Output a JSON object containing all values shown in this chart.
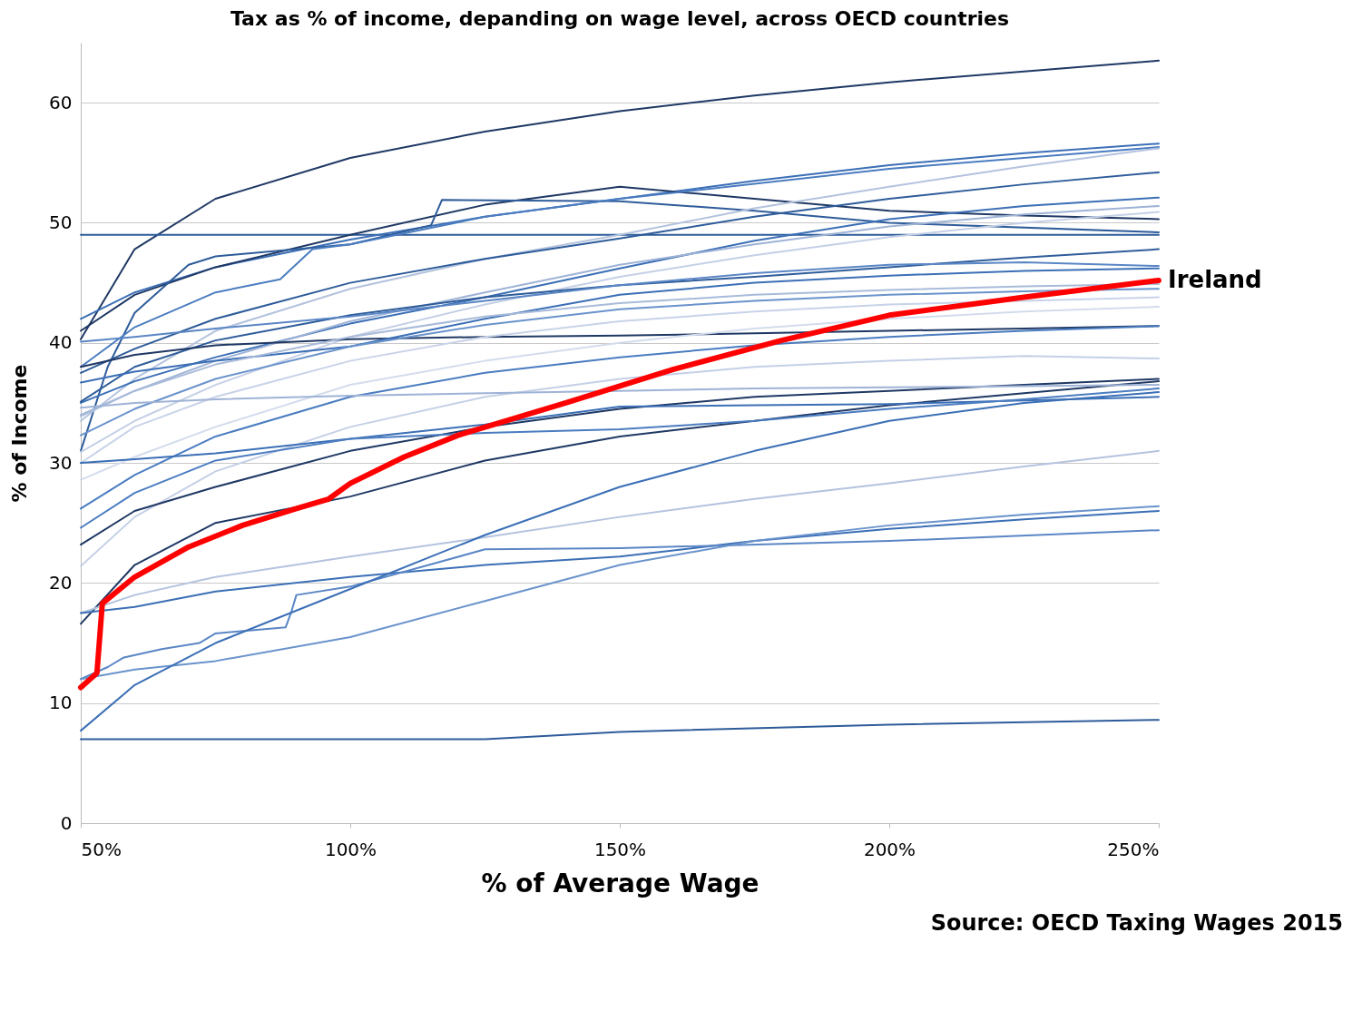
{
  "chart_data": {
    "type": "line",
    "title": "Tax as % of income, depanding on wage level, across OECD countries",
    "xlabel": "% of Average Wage",
    "ylabel": "% of Income",
    "annotations": [
      "Source: OECD Taxing Wages 2015"
    ],
    "x": [
      50,
      60,
      75,
      100,
      125,
      150,
      175,
      200,
      225,
      250
    ],
    "xlim": [
      50,
      250
    ],
    "xticks": [
      {
        "value": 50,
        "label": "50%"
      },
      {
        "value": 100,
        "label": "100%"
      },
      {
        "value": 150,
        "label": "150%"
      },
      {
        "value": 200,
        "label": "200%"
      },
      {
        "value": 250,
        "label": "250%"
      }
    ],
    "ylim": [
      0,
      65
    ],
    "yticks": [
      0,
      10,
      20,
      30,
      40,
      50,
      60
    ],
    "grid": "y",
    "marker": "none",
    "line_style": "solid",
    "series": [
      {
        "color": "#1f3864",
        "values": [
          40.3,
          47.8,
          52,
          55.4,
          57.6,
          59.3,
          60.6,
          61.7,
          62.6,
          63.5
        ]
      },
      {
        "color": "#2e5c9a",
        "values": [
          49,
          49,
          49,
          49,
          49,
          49,
          49,
          49,
          49,
          49
        ]
      },
      {
        "color": "#3b6fb6",
        "values": [
          42,
          44.2,
          46.3,
          48.6,
          50.5,
          52,
          53.5,
          54.8,
          55.8,
          56.6
        ]
      },
      {
        "color": "#1f3864",
        "values": [
          41,
          44,
          46.3,
          49,
          51.5,
          53,
          52,
          51,
          50.6,
          50.3
        ]
      },
      {
        "color": "#2e5c9a",
        "x": [
          50,
          55,
          60,
          70,
          75,
          100,
          115,
          117,
          150,
          175,
          200,
          250
        ],
        "values": [
          31,
          38,
          42.5,
          46.5,
          47.2,
          48.2,
          49.8,
          51.9,
          51.8,
          51,
          50,
          49.2
        ]
      },
      {
        "color": "#4a7cc0",
        "x": [
          50,
          60,
          75,
          87,
          93,
          100,
          125,
          150,
          200,
          250
        ],
        "values": [
          38,
          41.3,
          44.2,
          45.3,
          47.8,
          48.2,
          50.5,
          52,
          54.5,
          56.3
        ]
      },
      {
        "color": "#b4c3de",
        "values": [
          33.5,
          37,
          41,
          44.5,
          47,
          49,
          51.2,
          53,
          54.7,
          56.2
        ]
      },
      {
        "color": "#2e5c9a",
        "values": [
          37.5,
          39.5,
          42,
          45,
          47,
          48.7,
          50.5,
          52,
          53.2,
          54.2
        ]
      },
      {
        "color": "#3b6fb6",
        "values": [
          35,
          36.8,
          38.8,
          41.6,
          43.8,
          46.2,
          48.5,
          50.3,
          51.4,
          52.1
        ]
      },
      {
        "color": "#9fb3d6",
        "values": [
          34,
          36,
          38.5,
          41.8,
          44.2,
          46.5,
          48.2,
          49.7,
          50.7,
          51.4
        ]
      },
      {
        "color": "#c5d0e6",
        "values": [
          30.9,
          33.5,
          36.5,
          40.5,
          43.2,
          45.5,
          47.3,
          48.8,
          50,
          50.9
        ]
      },
      {
        "color": "#2e5c9a",
        "values": [
          35.1,
          38,
          40.2,
          42.3,
          43.8,
          44.8,
          45.5,
          46.3,
          47.1,
          47.8
        ]
      },
      {
        "color": "#5a86c5",
        "values": [
          40.1,
          40.5,
          41.2,
          42.2,
          43.5,
          44.8,
          45.8,
          46.5,
          46.7,
          46.4
        ]
      },
      {
        "color": "#1f3864",
        "values": [
          38,
          39,
          39.8,
          40.3,
          40.5,
          40.6,
          40.8,
          41,
          41.2,
          41.4
        ]
      },
      {
        "color": "#3b6fb6",
        "values": [
          36.7,
          37.6,
          38.5,
          39.7,
          42,
          44,
          45,
          45.6,
          46,
          46.2
        ]
      },
      {
        "color": "#a9bbda",
        "values": [
          33.9,
          36,
          38.2,
          40.5,
          42.2,
          43.3,
          44,
          44.4,
          44.7,
          44.9
        ]
      },
      {
        "color": "#6a93cc",
        "values": [
          32.3,
          34.5,
          37,
          39.7,
          41.5,
          42.8,
          43.5,
          44,
          44.3,
          44.5
        ]
      },
      {
        "color": "#c9d3e8",
        "values": [
          30,
          33,
          35.5,
          38.5,
          40.5,
          41.8,
          42.6,
          43.2,
          43.5,
          43.8
        ]
      },
      {
        "color": "#d3dced",
        "values": [
          28.6,
          30.5,
          33,
          36.5,
          38.5,
          40,
          41.2,
          42,
          42.6,
          43
        ]
      },
      {
        "color": "#4a7cc0",
        "values": [
          26.2,
          29,
          32.2,
          35.5,
          37.5,
          38.8,
          39.8,
          40.5,
          41,
          41.4
        ]
      },
      {
        "color": "#c5d0e6",
        "values": [
          21.4,
          25.5,
          29.3,
          33,
          35.5,
          37,
          38,
          38.5,
          38.9,
          38.7
        ]
      },
      {
        "color": "#1f3864",
        "values": [
          23.2,
          26,
          28,
          31,
          33,
          34.5,
          35.5,
          36,
          36.5,
          37
        ]
      },
      {
        "color": "#1f3864",
        "values": [
          16.6,
          21.5,
          25,
          27.2,
          30.2,
          32.2,
          33.5,
          34.8,
          35.8,
          36.8
        ]
      },
      {
        "color": "#3b6fb6",
        "values": [
          30,
          30.3,
          30.8,
          32,
          33.2,
          34.7,
          34.8,
          34.9,
          35.2,
          35.5
        ]
      },
      {
        "color": "#4a7cc0",
        "values": [
          24.6,
          27.5,
          30.2,
          32,
          32.5,
          32.8,
          33.5,
          34.5,
          35.3,
          36.2
        ]
      },
      {
        "color": "#9fb3d6",
        "values": [
          34.6,
          35,
          35.3,
          35.6,
          35.8,
          36,
          36.2,
          36.3,
          36.4,
          36.5
        ]
      },
      {
        "color": "#b4c3de",
        "values": [
          17.5,
          19,
          20.5,
          22.2,
          23.8,
          25.5,
          27,
          28.3,
          29.7,
          31
        ]
      },
      {
        "color": "#3b6fb6",
        "values": [
          17.5,
          18,
          19.3,
          20.5,
          21.5,
          22.2,
          23.5,
          24.5,
          25.3,
          26
        ]
      },
      {
        "color": "#5a86c5",
        "x": [
          50,
          55,
          58,
          65,
          72,
          75,
          88,
          89,
          90,
          100,
          125,
          150,
          200,
          250
        ],
        "values": [
          12,
          13,
          13.8,
          14.5,
          15,
          15.8,
          16.3,
          17.5,
          19,
          19.7,
          22.8,
          22.9,
          23.5,
          24.4
        ]
      },
      {
        "color": "#6a93cc",
        "values": [
          12,
          12.8,
          13.5,
          15.5,
          18.5,
          21.5,
          23.5,
          24.8,
          25.7,
          26.4
        ]
      },
      {
        "color": "#3b6fb6",
        "values": [
          7.7,
          11.5,
          15,
          19.5,
          24,
          28,
          31,
          33.5,
          35,
          35.9
        ]
      },
      {
        "color": "#2e5c9a",
        "x": [
          50,
          100,
          125,
          150,
          200,
          250
        ],
        "values": [
          7,
          7,
          7,
          7.6,
          8.2,
          8.6
        ]
      },
      {
        "name": "Ireland",
        "color": "#ff0000",
        "x": [
          50,
          53,
          54,
          60,
          70,
          80,
          90,
          96,
          100,
          110,
          120,
          140,
          160,
          180,
          200,
          225,
          250
        ],
        "values": [
          11.3,
          12.5,
          18.3,
          20.5,
          23,
          24.8,
          26.2,
          27,
          28.3,
          30.5,
          32.3,
          35,
          37.8,
          40.2,
          42.3,
          43.8,
          45.2
        ]
      }
    ]
  }
}
